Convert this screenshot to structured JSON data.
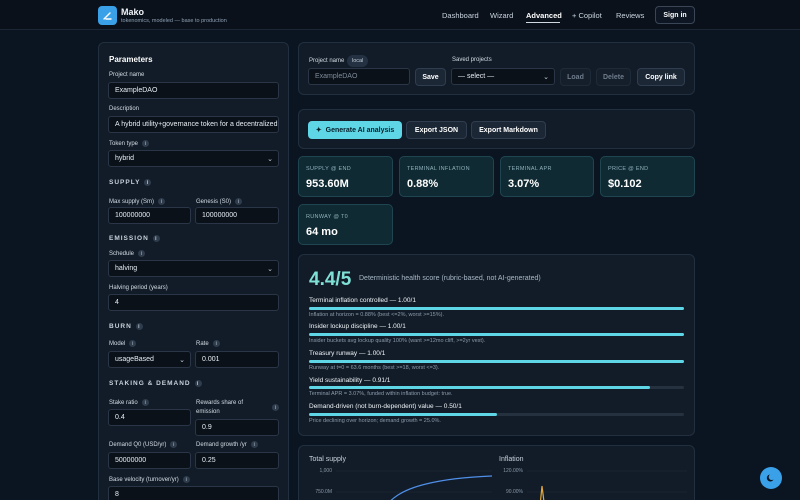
{
  "app": {
    "name": "Mako",
    "tagline": "tokenomics, modeled — base to production"
  },
  "nav": {
    "dashboard": "Dashboard",
    "wizard": "Wizard",
    "advanced": "Advanced",
    "copilot": "+ Copilot",
    "reviews": "Reviews",
    "sign_in": "Sign in"
  },
  "params": {
    "title": "Parameters",
    "project_name_label": "Project name",
    "project_name": "ExampleDAO",
    "description_label": "Description",
    "description": "A hybrid utility+governance token for a decentralized",
    "token_type_label": "Token type",
    "token_type": "hybrid",
    "supply_section": "SUPPLY",
    "max_supply_label": "Max supply (Sm)",
    "max_supply": "100000000",
    "genesis_label": "Genesis (S0)",
    "genesis": "100000000",
    "emission_section": "EMISSION",
    "schedule_label": "Schedule",
    "schedule": "halving",
    "halving_label": "Halving period (years)",
    "halving": "4",
    "burn_section": "BURN",
    "model_label": "Model",
    "model": "usageBased",
    "rate_label": "Rate",
    "rate": "0.001",
    "staking_section": "STAKING & DEMAND",
    "stake_ratio_label": "Stake ratio",
    "stake_ratio": "0.4",
    "rewards_label_1": "Rewards share of",
    "rewards_label_2": "emission",
    "rewards": "0.9",
    "demand_q0_label": "Demand Q0 (USD/yr)",
    "demand_q0": "50000000",
    "demand_growth_label": "Demand growth /yr",
    "demand_growth": "0.25",
    "base_velocity_label": "Base velocity (turnover/yr)",
    "base_velocity": "8"
  },
  "project_bar": {
    "name_label": "Project name",
    "local_badge": "local",
    "name_placeholder": "ExampleDAO",
    "save": "Save",
    "saved_label": "Saved projects",
    "saved_select": "— select —",
    "load": "Load",
    "delete": "Delete",
    "copy_link": "Copy link"
  },
  "actions": {
    "ai": "Generate AI analysis",
    "json": "Export JSON",
    "markdown": "Export Markdown"
  },
  "stats": [
    {
      "caption": "SUPPLY @ END",
      "value": "953.60M"
    },
    {
      "caption": "TERMINAL INFLATION",
      "value": "0.88%"
    },
    {
      "caption": "TERMINAL APR",
      "value": "3.07%"
    },
    {
      "caption": "PRICE @ END",
      "value": "$0.102"
    },
    {
      "caption": "RUNWAY @ T0",
      "value": "64 mo"
    }
  ],
  "health": {
    "score": "4.4/5",
    "description": "Deterministic health score (rubric-based, not AI-generated)",
    "metrics": [
      {
        "title": "Terminal inflation controlled — 1.00/1",
        "fill": 1.0,
        "note": "Inflation at horizon = 0.88% (best <=2%, worst >=15%)."
      },
      {
        "title": "Insider lockup discipline — 1.00/1",
        "fill": 1.0,
        "note": "Insider buckets avg lockup quality 100% (want >=12mo cliff, >=2yr vest)."
      },
      {
        "title": "Treasury runway — 1.00/1",
        "fill": 1.0,
        "note": "Runway at t=0 = 63.6 months (best >=18, worst <=3)."
      },
      {
        "title": "Yield sustainability — 0.91/1",
        "fill": 0.91,
        "note": "Terminal APR = 3.07%, funded within inflation budget: true."
      },
      {
        "title": "Demand-driven (not burn-dependent) value — 0.50/1",
        "fill": 0.5,
        "note": "Price declining over horizon; demand growth = 25.0%."
      }
    ]
  },
  "charts": {
    "supply": {
      "title": "Total supply",
      "ticks": [
        "1,000",
        "750.0M"
      ]
    },
    "inflation": {
      "title": "Inflation",
      "ticks": [
        "120.00%",
        "90.00%"
      ]
    }
  },
  "colors": {
    "accent": "#5ed6e6",
    "brand": "#3aa0e8",
    "background": "#0b1522"
  }
}
